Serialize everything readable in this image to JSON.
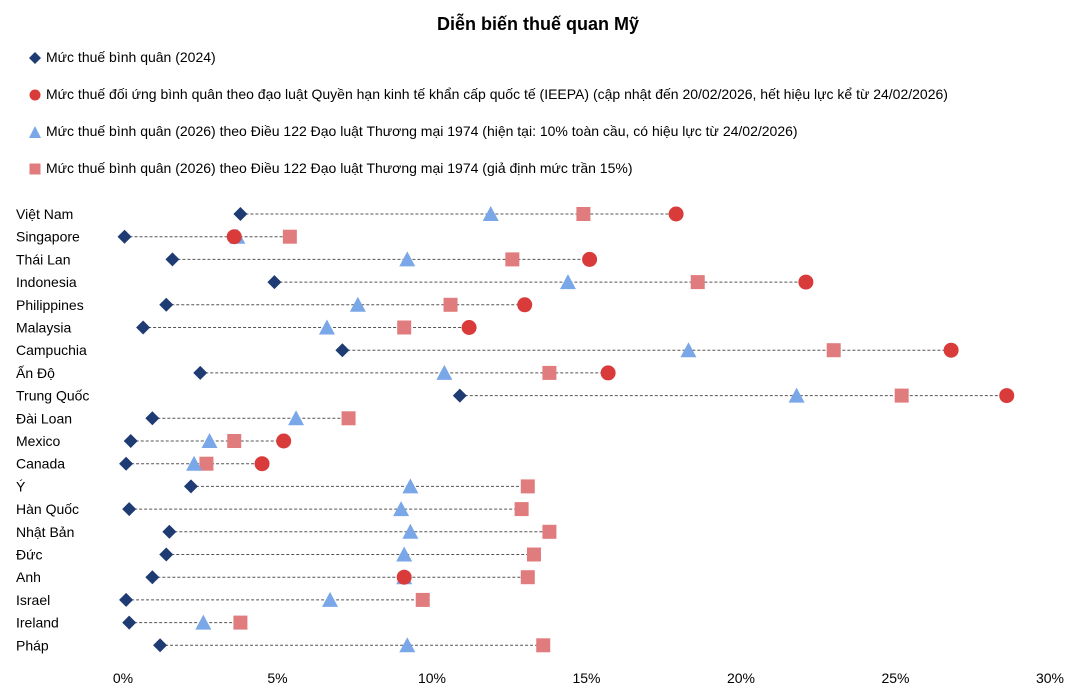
{
  "chart_data": {
    "type": "scatter",
    "title": "Diễn biến thuế quan Mỹ",
    "categories": [
      "Việt Nam",
      "Singapore",
      "Thái Lan",
      "Indonesia",
      "Philippines",
      "Malaysia",
      "Campuchia",
      "Ấn Độ",
      "Trung Quốc",
      "Đài Loan",
      "Mexico",
      "Canada",
      "Ý",
      "Hàn Quốc",
      "Nhật Bản",
      "Đức",
      "Anh",
      "Israel",
      "Ireland",
      "Pháp"
    ],
    "series": [
      {
        "name": "Mức thuế bình quân (2024)",
        "marker": "diamond",
        "color": "#1f3b73",
        "values": [
          3.8,
          0.05,
          1.6,
          4.9,
          1.4,
          0.65,
          7.1,
          2.5,
          10.9,
          0.95,
          0.25,
          0.1,
          2.2,
          0.2,
          1.5,
          1.4,
          0.95,
          0.1,
          0.2,
          1.2
        ]
      },
      {
        "name": "Mức thuế đối ứng bình quân theo đạo luật Quyền hạn kinh tế khẩn cấp quốc tế (IEEPA) (cập nhật đến 20/02/2026, hết hiệu lực kể từ 24/02/2026)",
        "marker": "circle",
        "color": "#d93a3a",
        "values": [
          17.9,
          3.6,
          15.1,
          22.1,
          13.0,
          11.2,
          26.8,
          15.7,
          28.6,
          null,
          5.2,
          4.5,
          null,
          null,
          null,
          null,
          9.1,
          null,
          null,
          null
        ]
      },
      {
        "name": "Mức thuế bình quân (2026) theo Điều 122 Đạo luật Thương mại 1974 (hiện tại: 10% toàn cầu, có hiệu lực từ 24/02/2026)",
        "marker": "triangle",
        "color": "#7aa7e8",
        "values": [
          11.9,
          3.7,
          9.2,
          14.4,
          7.6,
          6.6,
          18.3,
          10.4,
          21.8,
          5.6,
          2.8,
          2.3,
          9.3,
          9.0,
          9.3,
          9.1,
          9.1,
          6.7,
          2.6,
          9.2
        ]
      },
      {
        "name": "Mức thuế bình quân (2026) theo Điều 122 Đạo luật Thương mại 1974 (giả định mức trần 15%)",
        "marker": "square",
        "color": "#e07c7e",
        "values": [
          14.9,
          5.4,
          12.6,
          18.6,
          10.6,
          9.1,
          23.0,
          13.8,
          25.2,
          7.3,
          3.6,
          2.7,
          13.1,
          12.9,
          13.8,
          13.3,
          13.1,
          9.7,
          3.8,
          13.6
        ]
      }
    ],
    "x_ticks": [
      "0%",
      "5%",
      "10%",
      "15%",
      "20%",
      "25%",
      "30%"
    ],
    "xlim": [
      0,
      30
    ],
    "xlabel": "",
    "ylabel": "",
    "grid": false,
    "legend_position": "top-left"
  }
}
